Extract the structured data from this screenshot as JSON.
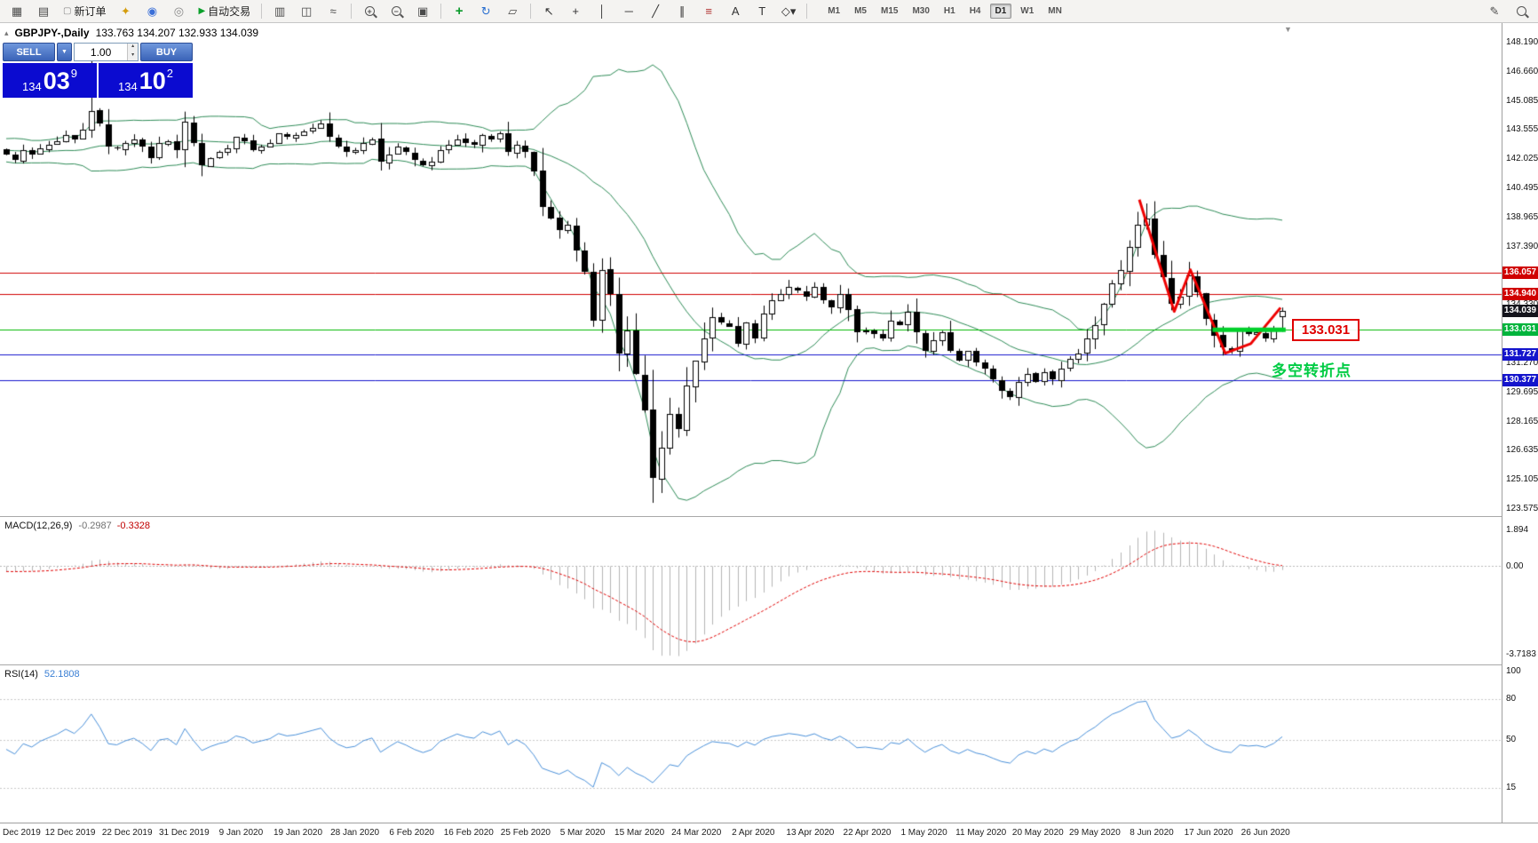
{
  "toolbar": {
    "left_items": [
      {
        "name": "new-chart",
        "glyph": "▦",
        "color": "#4a4a4a"
      },
      {
        "name": "chart-preview",
        "glyph": "▤",
        "color": "#4a4a4a"
      },
      {
        "name": "new-order",
        "label": "新订单",
        "icon_glyph": "▢",
        "icon_color": "#888888",
        "kind": "text"
      },
      {
        "name": "alerts",
        "glyph": "✦",
        "color": "#d49c0c"
      },
      {
        "name": "community",
        "glyph": "◉",
        "color": "#3a6fd8"
      },
      {
        "name": "market",
        "glyph": "◎",
        "color": "#888888"
      },
      {
        "name": "auto-trading",
        "label": "自动交易",
        "icon_glyph": "▶",
        "icon_color": "#0aa02a",
        "kind": "text"
      },
      {
        "kind": "sep"
      },
      {
        "name": "bar-chart-mode",
        "glyph": "▥",
        "color": "#4a4a4a"
      },
      {
        "name": "candle-chart-mode",
        "glyph": "◫",
        "color": "#4a4a4a"
      },
      {
        "name": "line-chart-mode",
        "glyph": "≈",
        "color": "#4a4a4a"
      },
      {
        "kind": "sep"
      },
      {
        "name": "zoom-in",
        "kind": "mag",
        "sign": "+"
      },
      {
        "name": "zoom-out",
        "kind": "mag",
        "sign": "−"
      },
      {
        "name": "tile-windows",
        "glyph": "▣",
        "color": "#4a4a4a"
      },
      {
        "kind": "sep"
      },
      {
        "name": "indicators",
        "glyph": "+",
        "color": "#0a9a2a",
        "bold": true
      },
      {
        "name": "periods",
        "glyph": "↻",
        "color": "#2a6fd0"
      },
      {
        "name": "templates",
        "glyph": "▱",
        "color": "#4a4a4a"
      },
      {
        "kind": "sep"
      },
      {
        "name": "cursor",
        "glyph": "↖",
        "color": "#333333"
      },
      {
        "name": "crosshair",
        "glyph": "+",
        "color": "#333333"
      },
      {
        "name": "vertical-line-tool",
        "glyph": "│",
        "color": "#333333"
      },
      {
        "name": "horizontal-line-tool",
        "glyph": "─",
        "color": "#333333"
      },
      {
        "name": "trendline-tool",
        "glyph": "╱",
        "color": "#333333"
      },
      {
        "name": "channel-tool",
        "glyph": "∥",
        "color": "#333333"
      },
      {
        "name": "fibonacci-tool",
        "glyph": "≡",
        "color": "#b03030"
      },
      {
        "name": "text-tool",
        "glyph": "A",
        "color": "#333333"
      },
      {
        "name": "label-tool",
        "glyph": "T",
        "color": "#333333"
      },
      {
        "name": "shapes-tool",
        "glyph": "◇▾",
        "color": "#333333"
      },
      {
        "kind": "sep"
      }
    ],
    "timeframes": [
      "M1",
      "M5",
      "M15",
      "M30",
      "H1",
      "H4",
      "D1",
      "W1",
      "MN"
    ],
    "active_timeframe": "D1",
    "right_items": [
      {
        "name": "edit-pencil",
        "glyph": "✎",
        "color": "#4a4a4a"
      },
      {
        "name": "search",
        "kind": "mag",
        "sign": ""
      }
    ]
  },
  "chart": {
    "symbol_title": "GBPJPY-,Daily",
    "ohlc_text": "133.763 134.207 132.933 134.039",
    "shift_marker_glyph": "▼",
    "one_click": {
      "collapse_glyph": "▴",
      "sell_label": "SELL",
      "buy_label": "BUY",
      "drop_glyph": "▼",
      "spin_up": "▴",
      "spin_down": "▾",
      "volume": "1.00",
      "sell_price": {
        "base": "134",
        "pips": "03",
        "frac": "9"
      },
      "buy_price": {
        "base": "134",
        "pips": "10",
        "frac": "2"
      }
    },
    "price_labels": [
      {
        "text": "136.057",
        "price": 136.057,
        "color": "#d00000"
      },
      {
        "text": "134.940",
        "price": 134.94,
        "color": "#d00000"
      },
      {
        "text": "134.039",
        "price": 134.039,
        "color": "#14141c"
      },
      {
        "text": "133.031",
        "price": 133.031,
        "color": "#00b43c"
      },
      {
        "text": "131.727",
        "price": 131.727,
        "color": "#1414cc"
      },
      {
        "text": "130.377",
        "price": 130.377,
        "color": "#1414cc"
      }
    ],
    "annotations": {
      "level_label": "133.031",
      "note": "多空转折点"
    }
  },
  "axis": {
    "price_ticks": [
      "148.190",
      "146.660",
      "145.085",
      "143.555",
      "142.025",
      "140.495",
      "138.965",
      "137.390",
      "135.860",
      "134.330",
      "132.800",
      "131.270",
      "129.695",
      "128.165",
      "126.635",
      "125.105",
      "123.575"
    ],
    "dates": [
      "Dec 2019",
      "12 Dec 2019",
      "22 Dec 2019",
      "31 Dec 2019",
      "9 Jan 2020",
      "19 Jan 2020",
      "28 Jan 2020",
      "6 Feb 2020",
      "16 Feb 2020",
      "25 Feb 2020",
      "5 Mar 2020",
      "15 Mar 2020",
      "24 Mar 2020",
      "2 Apr 2020",
      "13 Apr 2020",
      "22 Apr 2020",
      "1 May 2020",
      "11 May 2020",
      "20 May 2020",
      "29 May 2020",
      "8 Jun 2020",
      "17 Jun 2020",
      "26 Jun 2020"
    ]
  },
  "macd": {
    "name": "MACD(12,26,9)",
    "value_main": "-0.2987",
    "value_signal": "-0.3328",
    "tick_top": "1.894",
    "tick_zero": "0.00",
    "tick_bottom": "-3.7183"
  },
  "rsi": {
    "name": "RSI(14)",
    "value": "52.1808",
    "ticks": [
      {
        "v": 100,
        "label": "100"
      },
      {
        "v": 80,
        "label": "80"
      },
      {
        "v": 50,
        "label": "50"
      },
      {
        "v": 15,
        "label": "15"
      }
    ]
  },
  "chart_data": {
    "type": "candlestick",
    "symbol": "GBPJPY-",
    "timeframe": "Daily",
    "price_range_top": 148.19,
    "price_range_bottom": 123.575,
    "last_ohlc": {
      "open": 133.763,
      "high": 134.207,
      "low": 132.933,
      "close": 134.039
    },
    "pre_closes": [
      143.4,
      143.1,
      142.9,
      143.2,
      143.0,
      142.7,
      142.5,
      142.8,
      143.0,
      142.6,
      142.3,
      142.6,
      142.9,
      143.2,
      142.8,
      142.4,
      142.1,
      142.4,
      142.7,
      142.4,
      142.2,
      142.0,
      142.3,
      142.5,
      142.2
    ],
    "closes": [
      142.3,
      142.0,
      142.5,
      142.3,
      142.6,
      142.8,
      143.0,
      143.3,
      143.1,
      143.6,
      144.6,
      143.9,
      142.7,
      142.6,
      142.9,
      143.1,
      142.7,
      142.1,
      142.9,
      143.0,
      142.5,
      144.0,
      142.9,
      141.7,
      142.1,
      142.4,
      142.6,
      143.2,
      143.0,
      142.5,
      142.7,
      142.9,
      143.4,
      143.2,
      143.3,
      143.5,
      143.7,
      143.9,
      143.2,
      142.7,
      142.4,
      142.5,
      142.9,
      143.1,
      141.9,
      142.3,
      142.7,
      142.4,
      142.0,
      141.7,
      141.9,
      142.5,
      142.8,
      143.1,
      142.9,
      142.8,
      143.3,
      143.1,
      143.4,
      142.4,
      142.8,
      142.4,
      141.4,
      139.5,
      138.9,
      138.3,
      138.6,
      137.2,
      136.1,
      133.5,
      136.2,
      134.9,
      131.8,
      133.0,
      130.7,
      128.8,
      125.2,
      126.8,
      128.6,
      127.8,
      130.1,
      131.4,
      132.6,
      133.7,
      133.4,
      133.2,
      132.3,
      133.4,
      132.6,
      133.9,
      134.6,
      134.9,
      135.3,
      135.1,
      134.8,
      135.3,
      134.6,
      134.2,
      134.9,
      134.1,
      132.9,
      133.0,
      132.8,
      132.6,
      133.5,
      133.3,
      134.0,
      132.9,
      131.9,
      132.5,
      132.9,
      131.9,
      131.4,
      131.9,
      131.3,
      131.0,
      130.4,
      129.8,
      129.5,
      130.3,
      130.7,
      130.3,
      130.8,
      130.4,
      131.0,
      131.5,
      131.8,
      132.6,
      133.3,
      134.4,
      135.5,
      136.2,
      137.4,
      138.6,
      138.9,
      137.0,
      135.8,
      134.4,
      134.8,
      135.9,
      135.0,
      133.6,
      132.7,
      132.1,
      131.9,
      133.0,
      132.8,
      132.9,
      132.6,
      133.1,
      134.039
    ],
    "wick_overrides": {
      "10": {
        "high": 147.95
      },
      "76": {
        "low": 123.9
      },
      "134": {
        "high": 139.7
      },
      "150": {
        "open": 133.763,
        "high": 134.207,
        "low": 132.933,
        "close": 134.039
      }
    },
    "bollinger": {
      "period": 20,
      "deviation": 2
    },
    "macd_params": {
      "fast": 12,
      "slow": 26,
      "signal": 9
    },
    "rsi_params": {
      "period": 14
    },
    "hlines": [
      {
        "price": 136.057,
        "color": "#d00000",
        "width": 1
      },
      {
        "price": 134.94,
        "color": "#d00000",
        "width": 1
      },
      {
        "price": 133.031,
        "color": "#00b800",
        "width": 1
      },
      {
        "price": 131.727,
        "color": "#1414cc",
        "width": 1
      },
      {
        "price": 130.377,
        "color": "#1414cc",
        "width": 1
      }
    ],
    "trendline": {
      "color": "#ee0000",
      "width": 3,
      "points": [
        {
          "i": 133.2,
          "p": 139.9
        },
        {
          "i": 137.3,
          "p": 134.0
        },
        {
          "i": 139.2,
          "p": 136.2
        },
        {
          "i": 143.3,
          "p": 131.8
        },
        {
          "i": 146.3,
          "p": 132.3
        },
        {
          "i": 149.8,
          "p": 134.2
        }
      ]
    },
    "support_segment": {
      "price": 133.031,
      "from_i": 141.8,
      "to_i": 150.4,
      "color": "#00d02a",
      "width": 5
    }
  }
}
